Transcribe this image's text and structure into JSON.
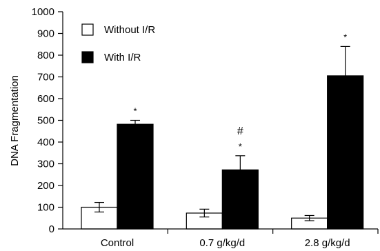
{
  "chart_data": {
    "type": "bar",
    "title": "",
    "xlabel": "",
    "ylabel": "DNA Fragmentation",
    "ylim": [
      0,
      1000
    ],
    "yticks": [
      0,
      100,
      200,
      300,
      400,
      500,
      600,
      700,
      800,
      900,
      1000
    ],
    "grid": false,
    "legend_position": "top-left",
    "categories": [
      "Control",
      "0.7 g/kg/d",
      "2.8 g/kg/d"
    ],
    "series": [
      {
        "name": "Without I/R",
        "color": "#ffffff",
        "values": [
          100,
          73,
          50
        ],
        "errors": [
          22,
          18,
          12
        ]
      },
      {
        "name": "With I/R",
        "color": "#000000",
        "values": [
          482,
          272,
          705
        ],
        "errors": [
          18,
          65,
          135
        ]
      }
    ],
    "annotations": [
      {
        "category": 0,
        "series": 1,
        "marks": [
          "*"
        ]
      },
      {
        "category": 1,
        "series": 1,
        "marks": [
          "#",
          "*"
        ]
      },
      {
        "category": 2,
        "series": 1,
        "marks": [
          "*"
        ]
      }
    ]
  }
}
